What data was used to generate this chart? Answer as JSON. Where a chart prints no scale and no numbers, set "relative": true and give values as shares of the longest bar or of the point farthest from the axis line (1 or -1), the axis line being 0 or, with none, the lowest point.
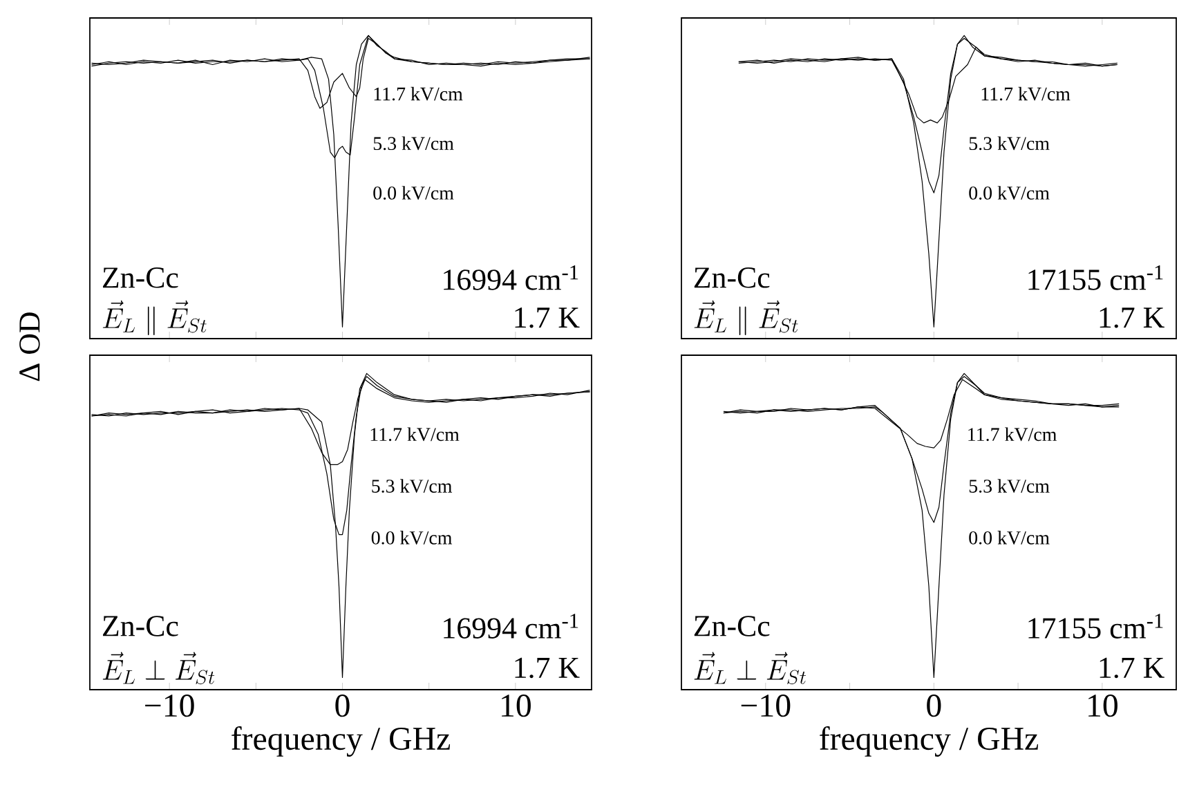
{
  "chart_data": [
    {
      "type": "line",
      "ylabel": "Δ OD",
      "relative": true,
      "tick_labels": false,
      "xlim": [
        -14.6,
        14.4
      ],
      "xticks": [
        {
          "value": -10,
          "label": null
        },
        {
          "value": -5,
          "label": null
        },
        {
          "value": 0,
          "label": null
        },
        {
          "value": 5,
          "label": null
        },
        {
          "value": 10,
          "label": null
        }
      ],
      "annotations": [
        "Zn-Cc",
        "\\vec{E}_L \\parallel \\vec{E}_{St}",
        "16994 cm$^{-1}$",
        "1.7 K"
      ],
      "series": [
        {
          "name": "11.7 kV/cm",
          "color": "#000000",
          "x": [
            -14.5,
            -13.5,
            -12.5,
            -11.5,
            -10.5,
            -9.5,
            -8.5,
            -7.5,
            -6.5,
            -5.5,
            -4.5,
            -3.5,
            -2.5,
            -2,
            -1.6,
            -1.3,
            -0.9,
            -0.5,
            0,
            0.4,
            0.8,
            1.0,
            1.2,
            1.5,
            2,
            2.5,
            3,
            4,
            5,
            6,
            7,
            8,
            9,
            10,
            11,
            12,
            13,
            14.3
          ],
          "values": [
            0.9,
            0.91,
            0.9,
            0.91,
            0.905,
            0.915,
            0.905,
            0.91,
            0.91,
            0.915,
            0.91,
            0.915,
            0.92,
            0.88,
            0.79,
            0.75,
            0.77,
            0.84,
            0.87,
            0.82,
            0.79,
            0.82,
            0.92,
            0.99,
            0.97,
            0.94,
            0.925,
            0.91,
            0.905,
            0.9,
            0.905,
            0.9,
            0.91,
            0.905,
            0.91,
            0.915,
            0.915,
            0.925
          ]
        },
        {
          "name": "5.3 kV/cm",
          "color": "#000000",
          "x": [
            -14.5,
            -13.5,
            -12.5,
            -11.5,
            -10.5,
            -9.5,
            -8.5,
            -7.5,
            -6.5,
            -5.5,
            -4.5,
            -3.5,
            -2.5,
            -2,
            -1.6,
            -1.1,
            -0.7,
            -0.45,
            -0.2,
            0,
            0.2,
            0.45,
            0.7,
            1.0,
            1.5,
            2,
            2.5,
            3,
            4,
            5,
            6,
            7,
            8,
            9,
            10,
            11,
            12,
            13,
            14.3
          ],
          "values": [
            0.895,
            0.905,
            0.91,
            0.905,
            0.91,
            0.905,
            0.915,
            0.9,
            0.915,
            0.91,
            0.92,
            0.91,
            0.915,
            0.92,
            0.88,
            0.75,
            0.6,
            0.58,
            0.61,
            0.62,
            0.6,
            0.59,
            0.72,
            0.9,
            1.0,
            0.965,
            0.945,
            0.92,
            0.915,
            0.9,
            0.905,
            0.9,
            0.905,
            0.9,
            0.91,
            0.905,
            0.915,
            0.92,
            0.92
          ]
        },
        {
          "name": "0.0 kV/cm",
          "color": "#000000",
          "x": [
            -14.5,
            -13.5,
            -12.5,
            -11.5,
            -10.5,
            -9.5,
            -8.5,
            -7.5,
            -6.5,
            -5.5,
            -4.5,
            -3.5,
            -2.5,
            -1.8,
            -1.2,
            -0.8,
            -0.5,
            -0.25,
            0,
            0.25,
            0.5,
            0.8,
            1.1,
            1.5,
            2,
            2.5,
            3,
            4,
            5,
            6,
            7,
            8,
            9,
            10,
            11,
            12,
            13,
            14.3
          ],
          "values": [
            0.905,
            0.9,
            0.905,
            0.915,
            0.91,
            0.905,
            0.91,
            0.915,
            0.905,
            0.915,
            0.91,
            0.92,
            0.915,
            0.925,
            0.92,
            0.85,
            0.66,
            0.35,
            0,
            0.35,
            0.7,
            0.9,
            0.97,
            1.0,
            0.97,
            0.94,
            0.92,
            0.91,
            0.905,
            0.9,
            0.9,
            0.895,
            0.905,
            0.9,
            0.905,
            0.91,
            0.915,
            0.92
          ]
        }
      ]
    },
    {
      "type": "line",
      "relative": true,
      "tick_labels": false,
      "xlim": [
        -15,
        14.4
      ],
      "xticks": [
        {
          "value": -10,
          "label": null
        },
        {
          "value": -5,
          "label": null
        },
        {
          "value": 0,
          "label": null
        },
        {
          "value": 5,
          "label": null
        },
        {
          "value": 10,
          "label": null
        }
      ],
      "annotations": [
        "Zn-Cc",
        "\\vec{E}_L \\parallel \\vec{E}_{St}",
        "17155 cm$^{-1}$",
        "1.7 K"
      ],
      "series": [
        {
          "name": "11.7 kV/cm",
          "color": "#000000",
          "x": [
            -11.6,
            -10.5,
            -9.5,
            -8.5,
            -7.5,
            -6.5,
            -5.5,
            -4.5,
            -3.5,
            -2.5,
            -2,
            -1.5,
            -1,
            -0.6,
            -0.2,
            0.2,
            0.5,
            0.9,
            1.3,
            2.0,
            2.5,
            3,
            4,
            5,
            6,
            7,
            8,
            9,
            10,
            10.9
          ],
          "values": [
            0.91,
            0.915,
            0.905,
            0.915,
            0.91,
            0.92,
            0.915,
            0.92,
            0.915,
            0.92,
            0.86,
            0.8,
            0.72,
            0.7,
            0.71,
            0.7,
            0.72,
            0.78,
            0.86,
            0.9,
            0.96,
            0.93,
            0.92,
            0.915,
            0.91,
            0.905,
            0.9,
            0.895,
            0.9,
            0.905
          ]
        },
        {
          "name": "5.3 kV/cm",
          "color": "#000000",
          "x": [
            -11.6,
            -10.5,
            -9.5,
            -8.5,
            -7.5,
            -6.5,
            -5.5,
            -4.5,
            -3.5,
            -2.5,
            -1.8,
            -1.2,
            -0.7,
            -0.3,
            0,
            0.3,
            0.6,
            1.0,
            1.4,
            1.8,
            2.5,
            3,
            4,
            5,
            6,
            7,
            8,
            9,
            10,
            10.9
          ],
          "values": [
            0.905,
            0.91,
            0.915,
            0.91,
            0.92,
            0.915,
            0.92,
            0.915,
            0.92,
            0.915,
            0.84,
            0.72,
            0.6,
            0.5,
            0.46,
            0.52,
            0.68,
            0.87,
            0.97,
            0.99,
            0.96,
            0.935,
            0.92,
            0.91,
            0.915,
            0.905,
            0.9,
            0.9,
            0.895,
            0.9
          ]
        },
        {
          "name": "0.0 kV/cm",
          "color": "#000000",
          "x": [
            -11.6,
            -10.5,
            -9.5,
            -8.5,
            -7.5,
            -6.5,
            -5.5,
            -4.5,
            -3.5,
            -2.5,
            -1.8,
            -1.2,
            -0.7,
            -0.3,
            0,
            0.3,
            0.6,
            1.0,
            1.4,
            1.8,
            2.3,
            3,
            4,
            5,
            6,
            7,
            8,
            9,
            10,
            10.9
          ],
          "values": [
            0.91,
            0.905,
            0.91,
            0.92,
            0.915,
            0.91,
            0.92,
            0.925,
            0.915,
            0.92,
            0.85,
            0.7,
            0.5,
            0.25,
            0,
            0.3,
            0.6,
            0.85,
            0.97,
            1.0,
            0.96,
            0.93,
            0.925,
            0.915,
            0.91,
            0.91,
            0.9,
            0.905,
            0.895,
            0.9
          ]
        }
      ]
    },
    {
      "type": "line",
      "xlabel": "frequency / GHz",
      "relative": true,
      "tick_labels": "x",
      "xlim": [
        -14.6,
        14.4
      ],
      "xticks": [
        {
          "value": -10,
          "label": "−10"
        },
        {
          "value": -5,
          "label": null
        },
        0,
        {
          "value": 5,
          "label": null
        },
        10
      ],
      "annotations": [
        "Zn-Cc",
        "\\vec{E}_L \\perp \\vec{E}_{St}",
        "16994 cm$^{-1}$",
        "1.7 K"
      ],
      "series": [
        {
          "name": "11.7 kV/cm",
          "color": "#000000",
          "x": [
            -14.5,
            -13.5,
            -12.5,
            -11.5,
            -10.5,
            -9.5,
            -8.5,
            -7.5,
            -6.5,
            -5.5,
            -4.5,
            -3.5,
            -2.5,
            -1.8,
            -1.2,
            -0.7,
            -0.3,
            0,
            0.3,
            0.6,
            0.9,
            1.3,
            2,
            3,
            4,
            5,
            6,
            7,
            8,
            9,
            10,
            11,
            12,
            13,
            14.3
          ],
          "values": [
            0.86,
            0.865,
            0.86,
            0.87,
            0.865,
            0.875,
            0.87,
            0.87,
            0.875,
            0.88,
            0.875,
            0.88,
            0.885,
            0.82,
            0.74,
            0.7,
            0.7,
            0.71,
            0.75,
            0.84,
            0.92,
            0.98,
            0.95,
            0.92,
            0.91,
            0.905,
            0.91,
            0.915,
            0.91,
            0.92,
            0.925,
            0.93,
            0.925,
            0.935,
            0.94
          ]
        },
        {
          "name": "5.3 kV/cm",
          "color": "#000000",
          "x": [
            -14.5,
            -13.5,
            -12.5,
            -11.5,
            -10.5,
            -9.5,
            -8.5,
            -7.5,
            -6.5,
            -5.5,
            -4.5,
            -3.5,
            -2.5,
            -2,
            -1.4,
            -0.9,
            -0.5,
            -0.2,
            0,
            0.25,
            0.5,
            0.8,
            1.1,
            1.4,
            2,
            3,
            4,
            5,
            6,
            7,
            8,
            9,
            10,
            11,
            12,
            13,
            14.3
          ],
          "values": [
            0.865,
            0.86,
            0.87,
            0.865,
            0.87,
            0.87,
            0.875,
            0.88,
            0.87,
            0.875,
            0.88,
            0.885,
            0.88,
            0.87,
            0.8,
            0.67,
            0.52,
            0.47,
            0.47,
            0.55,
            0.7,
            0.86,
            0.96,
            0.99,
            0.96,
            0.925,
            0.915,
            0.91,
            0.905,
            0.915,
            0.92,
            0.915,
            0.925,
            0.93,
            0.93,
            0.935,
            0.94
          ]
        },
        {
          "name": "0.0 kV/cm",
          "color": "#000000",
          "x": [
            -14.5,
            -13.5,
            -12.5,
            -11.5,
            -10.5,
            -9.5,
            -8.5,
            -7.5,
            -6.5,
            -5.5,
            -4.5,
            -3.5,
            -2.5,
            -2,
            -1.2,
            -0.7,
            -0.4,
            -0.2,
            0,
            0.2,
            0.4,
            0.7,
            1.0,
            1.4,
            2,
            3,
            4,
            5,
            6,
            7,
            8,
            9,
            10,
            11,
            12,
            13,
            14.3
          ],
          "values": [
            0.86,
            0.87,
            0.865,
            0.87,
            0.875,
            0.865,
            0.875,
            0.87,
            0.88,
            0.875,
            0.885,
            0.88,
            0.885,
            0.88,
            0.84,
            0.7,
            0.5,
            0.3,
            0,
            0.3,
            0.55,
            0.8,
            0.95,
            1.0,
            0.97,
            0.93,
            0.915,
            0.91,
            0.915,
            0.91,
            0.915,
            0.92,
            0.92,
            0.925,
            0.935,
            0.93,
            0.945
          ]
        }
      ]
    },
    {
      "type": "line",
      "xlabel": "frequency / GHz",
      "relative": true,
      "tick_labels": "x",
      "xlim": [
        -15,
        14.4
      ],
      "xticks": [
        {
          "value": -10,
          "label": "−10"
        },
        {
          "value": -5,
          "label": null
        },
        0,
        {
          "value": 5,
          "label": null
        },
        10
      ],
      "annotations": [
        "Zn-Cc",
        "\\vec{E}_L \\perp \\vec{E}_{St}",
        "17155 cm$^{-1}$",
        "1.7 K"
      ],
      "series": [
        {
          "name": "11.7 kV/cm",
          "color": "#000000",
          "x": [
            -12.5,
            -11.5,
            -10.5,
            -9.5,
            -8.5,
            -7.5,
            -6.5,
            -5.5,
            -4.5,
            -3.5,
            -2.5,
            -1.6,
            -1,
            -0.5,
            0,
            0.4,
            0.8,
            1.2,
            1.7,
            2.5,
            3,
            4,
            5,
            6,
            7,
            8,
            9,
            10,
            11
          ],
          "values": [
            0.87,
            0.875,
            0.87,
            0.88,
            0.875,
            0.88,
            0.885,
            0.88,
            0.89,
            0.885,
            0.84,
            0.8,
            0.77,
            0.76,
            0.755,
            0.78,
            0.85,
            0.93,
            0.98,
            0.95,
            0.93,
            0.915,
            0.91,
            0.905,
            0.9,
            0.9,
            0.895,
            0.89,
            0.895
          ]
        },
        {
          "name": "5.3 kV/cm",
          "color": "#000000",
          "x": [
            -12.5,
            -11.5,
            -10.5,
            -9.5,
            -8.5,
            -7.5,
            -6.5,
            -5.5,
            -4.5,
            -3.5,
            -3,
            -2,
            -1.3,
            -0.7,
            -0.3,
            0,
            0.3,
            0.6,
            1.0,
            1.4,
            1.8,
            2.5,
            3,
            4,
            5,
            6,
            7,
            8,
            9,
            10,
            11
          ],
          "values": [
            0.875,
            0.87,
            0.875,
            0.88,
            0.88,
            0.875,
            0.88,
            0.885,
            0.885,
            0.89,
            0.87,
            0.82,
            0.72,
            0.62,
            0.54,
            0.51,
            0.56,
            0.7,
            0.87,
            0.97,
            0.99,
            0.96,
            0.935,
            0.92,
            0.91,
            0.905,
            0.9,
            0.895,
            0.9,
            0.89,
            0.89
          ]
        },
        {
          "name": "0.0 kV/cm",
          "color": "#000000",
          "x": [
            -12.5,
            -11.5,
            -10.5,
            -9.5,
            -8.5,
            -7.5,
            -6.5,
            -5.5,
            -4.5,
            -3.5,
            -3,
            -2,
            -1.3,
            -0.7,
            -0.3,
            0,
            0.3,
            0.6,
            1.0,
            1.4,
            1.8,
            2.5,
            3,
            4,
            5,
            6,
            7,
            8,
            9,
            10,
            11
          ],
          "values": [
            0.87,
            0.88,
            0.875,
            0.875,
            0.885,
            0.88,
            0.885,
            0.88,
            0.89,
            0.895,
            0.87,
            0.82,
            0.72,
            0.55,
            0.3,
            0,
            0.3,
            0.6,
            0.85,
            0.97,
            1.0,
            0.96,
            0.93,
            0.92,
            0.915,
            0.91,
            0.9,
            0.9,
            0.895,
            0.895,
            0.9
          ]
        }
      ]
    }
  ]
}
